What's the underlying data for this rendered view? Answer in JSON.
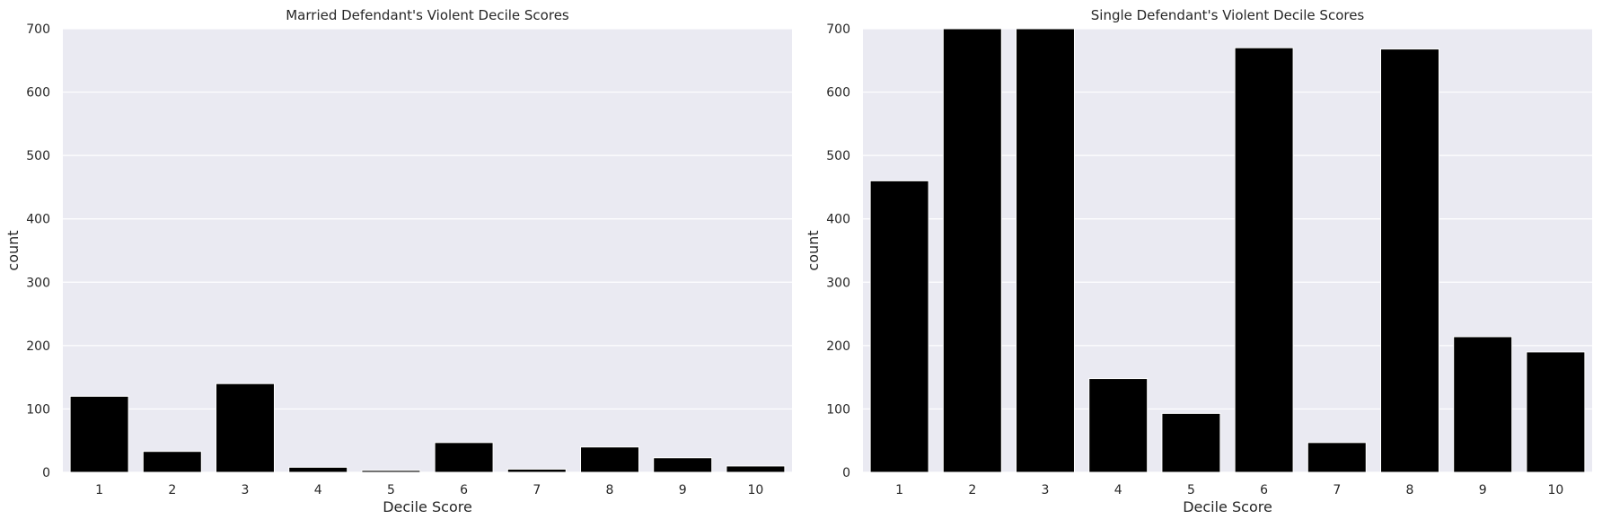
{
  "chart_data": [
    {
      "type": "bar",
      "title": "Married Defendant's Violent Decile Scores",
      "xlabel": "Decile Score",
      "ylabel": "count",
      "categories": [
        "1",
        "2",
        "3",
        "4",
        "5",
        "6",
        "7",
        "8",
        "9",
        "10"
      ],
      "values": [
        120,
        33,
        140,
        8,
        3,
        47,
        5,
        40,
        23,
        10
      ],
      "ylim": [
        0,
        700
      ],
      "yticks": [
        0,
        100,
        200,
        300,
        400,
        500,
        600,
        700
      ],
      "grid": true,
      "bar_color": "#000000"
    },
    {
      "type": "bar",
      "title": "Single Defendant's Violent Decile Scores",
      "xlabel": "Decile Score",
      "ylabel": "count",
      "categories": [
        "1",
        "2",
        "3",
        "4",
        "5",
        "6",
        "7",
        "8",
        "9",
        "10"
      ],
      "values": [
        460,
        700,
        700,
        148,
        93,
        670,
        47,
        668,
        214,
        190
      ],
      "ylim": [
        0,
        700
      ],
      "yticks": [
        0,
        100,
        200,
        300,
        400,
        500,
        600,
        700
      ],
      "grid": true,
      "bar_color": "#000000"
    }
  ],
  "style": {
    "plot_background": "#eaeaf2",
    "grid_color": "#ffffff",
    "text_color": "#262626"
  }
}
